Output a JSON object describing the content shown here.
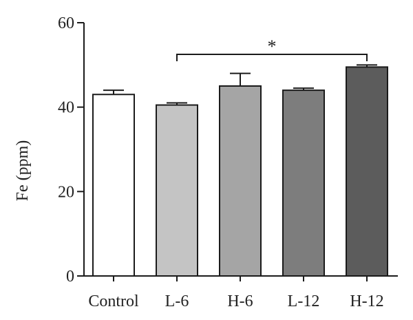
{
  "chart_data": {
    "type": "bar",
    "title": "",
    "xlabel": "",
    "ylabel": "Fe (ppm)",
    "ylim": [
      0,
      60
    ],
    "yticks": [
      0,
      20,
      40,
      60
    ],
    "grid": false,
    "categories": [
      "Control",
      "L-6",
      "H-6",
      "L-12",
      "H-12"
    ],
    "values": [
      43,
      40.5,
      45,
      44,
      49.5
    ],
    "errors": [
      1,
      0.5,
      3,
      0.5,
      0.5
    ],
    "colors": [
      "#ffffff",
      "#c4c4c4",
      "#a5a5a5",
      "#7d7d7d",
      "#5c5c5c"
    ],
    "significance": [
      {
        "from": "L-6",
        "to": "H-12",
        "label": "*"
      }
    ]
  }
}
